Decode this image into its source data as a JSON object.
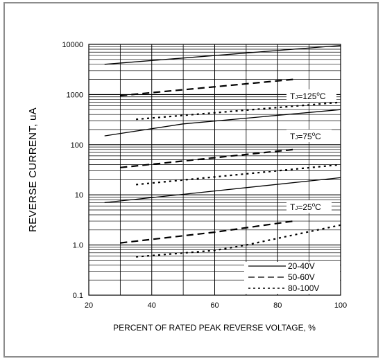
{
  "chart_data": {
    "type": "line",
    "title": "",
    "xlabel": "PERCENT OF RATED PEAK REVERSE VOLTAGE, %",
    "ylabel": "REVERSE CURRENT, uA",
    "xlim": [
      20,
      100
    ],
    "ylim": [
      0.1,
      10000
    ],
    "yscale": "log",
    "grid": true,
    "x_ticks": [
      20,
      40,
      60,
      80,
      100
    ],
    "x_tick_labels": [
      "20",
      "40",
      "60",
      "80",
      "100"
    ],
    "y_ticks": [
      0.1,
      1,
      10,
      100,
      1000,
      10000
    ],
    "y_tick_labels": [
      "0.1",
      "1.0",
      "10",
      "100",
      "1000",
      "10000"
    ],
    "legend_position": "bottom-right",
    "legend": [
      {
        "label": "20-40V",
        "style": "solid"
      },
      {
        "label": "50-60V",
        "style": "dashed"
      },
      {
        "label": "80-100V",
        "style": "dotted"
      }
    ],
    "annotations": [
      {
        "label": "TJ=125°C",
        "parts": [
          "T",
          "J",
          "=125",
          "o",
          "C"
        ]
      },
      {
        "label": "TJ=75°C",
        "parts": [
          "T",
          "J",
          "=75",
          "o",
          "C"
        ]
      },
      {
        "label": "TJ=25°C",
        "parts": [
          "T",
          "J",
          "=25",
          "o",
          "C"
        ]
      }
    ],
    "series": [
      {
        "group": "TJ=125°C",
        "style": "solid",
        "x": [
          25,
          100
        ],
        "y": [
          4000,
          9500
        ]
      },
      {
        "group": "TJ=125°C",
        "style": "dashed",
        "x": [
          30,
          85
        ],
        "y": [
          950,
          2000
        ]
      },
      {
        "group": "TJ=125°C",
        "style": "dotted",
        "x": [
          35,
          100
        ],
        "y": [
          320,
          700
        ]
      },
      {
        "group": "TJ=75°C",
        "style": "solid",
        "x": [
          25,
          50,
          100
        ],
        "y": [
          150,
          260,
          500
        ]
      },
      {
        "group": "TJ=75°C",
        "style": "dashed",
        "x": [
          30,
          85
        ],
        "y": [
          35,
          80
        ]
      },
      {
        "group": "TJ=75°C",
        "style": "dotted",
        "x": [
          35,
          100
        ],
        "y": [
          16,
          40
        ]
      },
      {
        "group": "TJ=25°C",
        "style": "solid",
        "x": [
          25,
          100
        ],
        "y": [
          7,
          22
        ]
      },
      {
        "group": "TJ=25°C",
        "style": "dashed",
        "x": [
          30,
          60,
          85
        ],
        "y": [
          1.1,
          1.8,
          3.0
        ]
      },
      {
        "group": "TJ=25°C",
        "style": "dotted",
        "x": [
          35,
          60,
          70,
          100
        ],
        "y": [
          0.58,
          0.78,
          1.0,
          2.5
        ]
      }
    ]
  }
}
